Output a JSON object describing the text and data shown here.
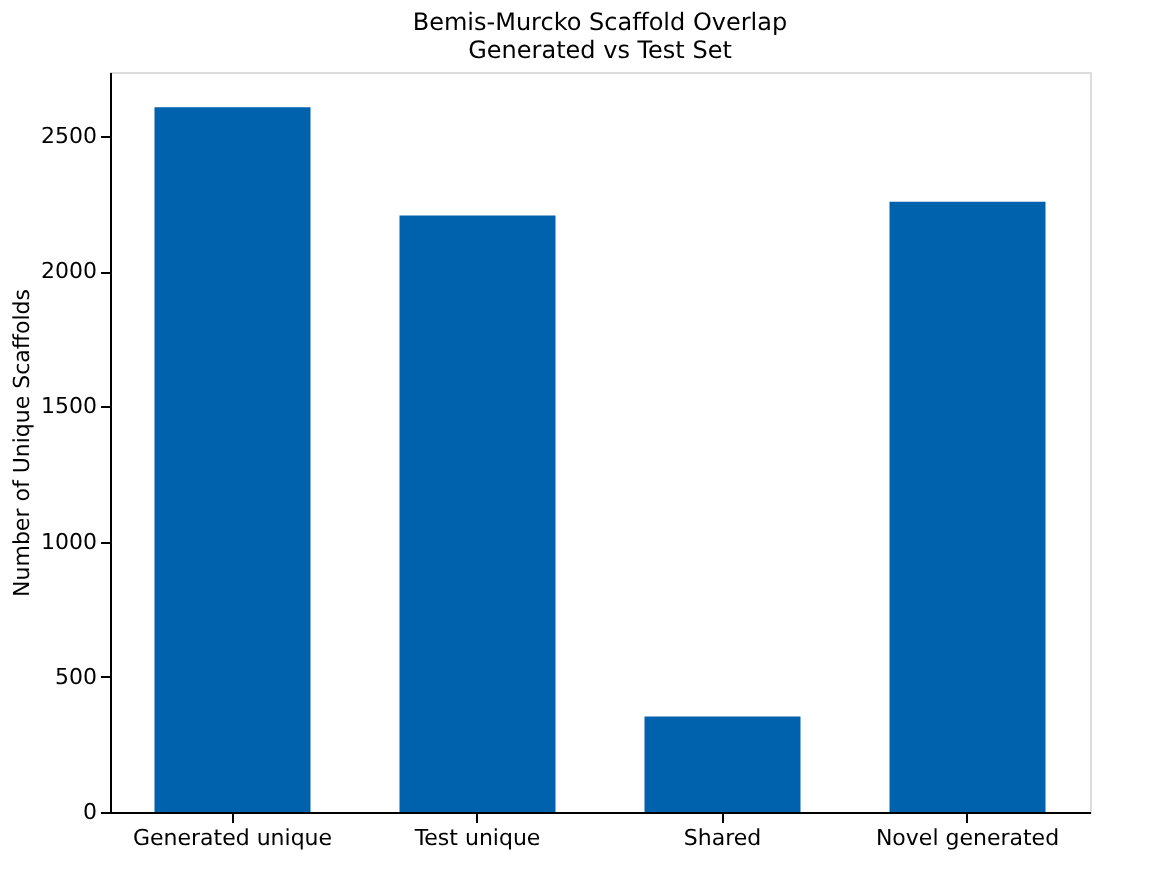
{
  "chart_data": {
    "type": "bar",
    "title": "Bemis-Murcko Scaffold Overlap\nGenerated vs Test Set",
    "ylabel": "Number of Unique Scaffolds",
    "categories": [
      "Generated unique",
      "Test unique",
      "Shared",
      "Novel generated"
    ],
    "values": [
      2607,
      2206,
      353,
      2257
    ],
    "color": "#0061ac",
    "ylim": [
      0,
      2737
    ],
    "yticks": [
      0,
      500,
      1000,
      1500,
      2000,
      2500
    ],
    "grid": false
  }
}
